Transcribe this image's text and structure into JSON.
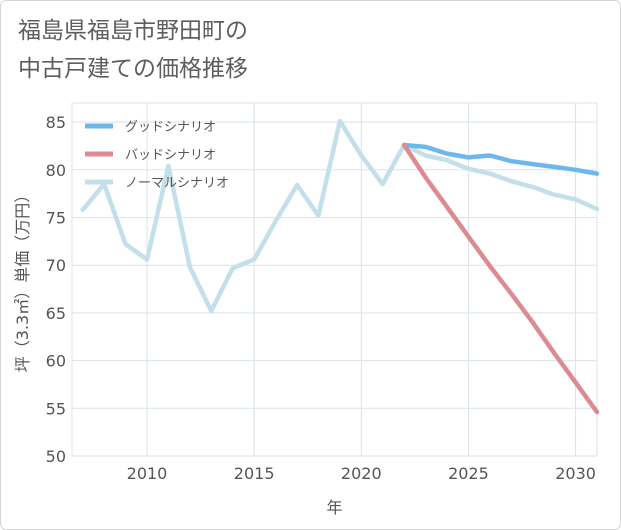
{
  "title": "福島県福島市野田町の\n中古戸建ての価格推移",
  "chart_data": {
    "type": "line",
    "xlabel": "年",
    "ylabel": "坪（3.3㎡）単価（万円）",
    "xlim": [
      2006.5,
      2031
    ],
    "ylim": [
      50,
      87
    ],
    "xticks": [
      2010,
      2015,
      2020,
      2025,
      2030
    ],
    "yticks": [
      50,
      55,
      60,
      65,
      70,
      75,
      80,
      85
    ],
    "grid": true,
    "legend_position": "top-left",
    "series": [
      {
        "name": "グッドシナリオ",
        "color": "#6cb8ec",
        "x": [
          2022,
          2023,
          2024,
          2025,
          2026,
          2027,
          2028,
          2029,
          2030,
          2031
        ],
        "y": [
          82.6,
          82.4,
          81.7,
          81.3,
          81.5,
          80.9,
          80.6,
          80.3,
          80.0,
          79.6
        ]
      },
      {
        "name": "バッドシナリオ",
        "color": "#dc8b91",
        "x": [
          2022,
          2023,
          2024,
          2025,
          2026,
          2027,
          2028,
          2029,
          2030,
          2031
        ],
        "y": [
          82.6,
          79.2,
          76.1,
          73.0,
          69.9,
          67.0,
          64.0,
          60.8,
          57.7,
          54.6
        ]
      },
      {
        "name": "ノーマルシナリオ",
        "color": "#c3dfea",
        "x": [
          2007,
          2008,
          2009,
          2010,
          2011,
          2012,
          2013,
          2014,
          2015,
          2016,
          2017,
          2018,
          2019,
          2020,
          2021,
          2022,
          2023,
          2024,
          2025,
          2026,
          2027,
          2028,
          2029,
          2030,
          2031
        ],
        "y": [
          75.8,
          78.5,
          72.2,
          70.6,
          80.4,
          69.8,
          65.2,
          69.7,
          70.6,
          74.6,
          78.4,
          75.2,
          85.1,
          81.5,
          78.5,
          82.6,
          81.5,
          81.0,
          80.1,
          79.6,
          78.8,
          78.2,
          77.4,
          76.9,
          75.9
        ]
      }
    ]
  }
}
